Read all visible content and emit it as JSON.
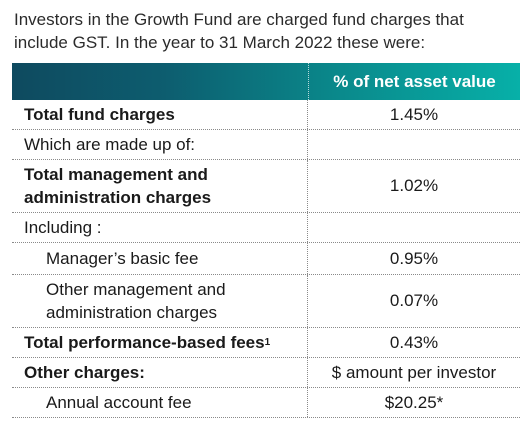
{
  "intro": "Investors in the Growth Fund are charged fund charges that include GST. In the year to 31 March 2022 these were:",
  "table": {
    "header": "% of net asset value",
    "rows": [
      {
        "label": "Total fund charges",
        "value": "1.45%"
      },
      {
        "label": "Which are made up of:",
        "value": ""
      },
      {
        "label": "Total management and administration charges",
        "value": "1.02%"
      },
      {
        "label": "Including :",
        "value": ""
      },
      {
        "label": "Manager’s basic fee",
        "value": "0.95%"
      },
      {
        "label": "Other management and administration charges",
        "value": "0.07%"
      },
      {
        "label": "Total performance-based fees",
        "sup": "1",
        "value": "0.43%"
      },
      {
        "label": "Other charges:",
        "value": "$ amount per investor"
      },
      {
        "label": "Annual account fee",
        "value": "$20.25*"
      }
    ]
  }
}
